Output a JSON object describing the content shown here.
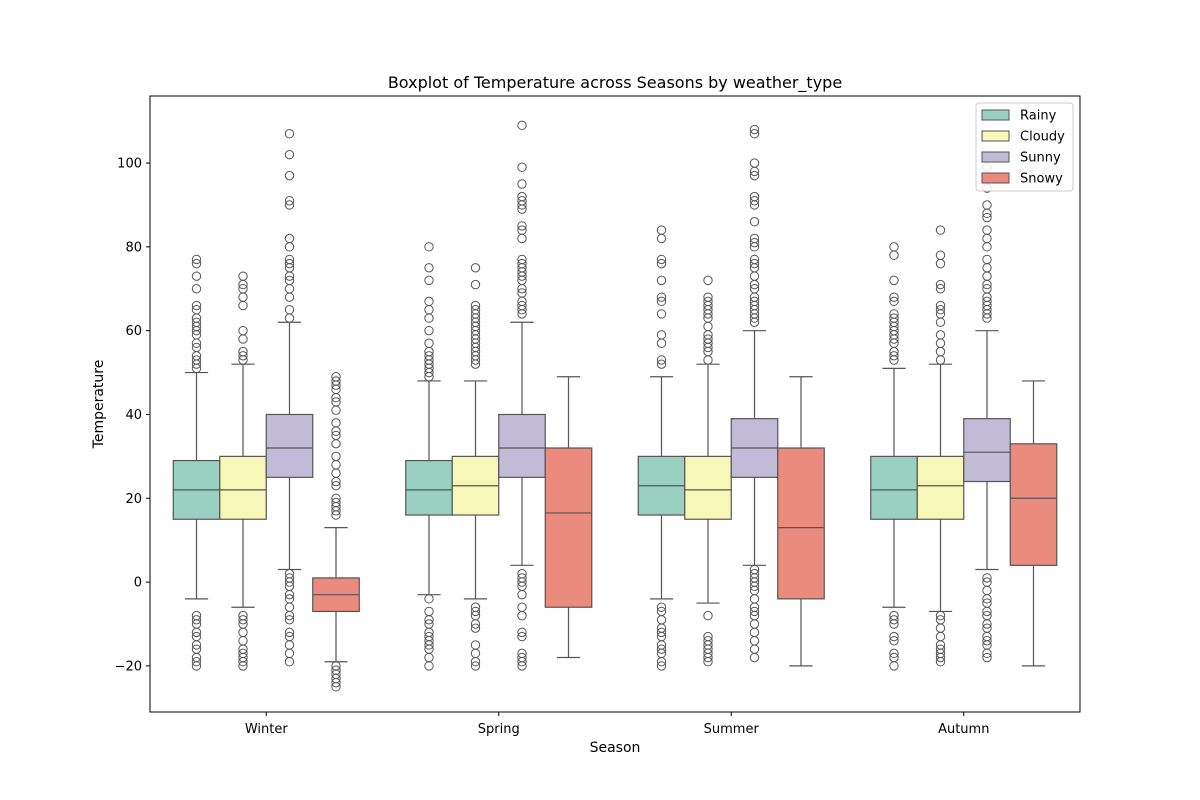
{
  "chart_data": {
    "type": "box",
    "title": "Boxplot of Temperature across Seasons by weather_type",
    "xlabel": "Season",
    "ylabel": "Temperature",
    "ylim": [
      -31,
      116
    ],
    "yticks": [
      -20,
      0,
      20,
      40,
      60,
      80,
      100
    ],
    "categories": [
      "Winter",
      "Spring",
      "Summer",
      "Autumn"
    ],
    "legend": {
      "location": "top-right"
    },
    "colors": {
      "Rainy": "#9ad0c2",
      "Cloudy": "#f7f7b8",
      "Sunny": "#c1bbd7",
      "Snowy": "#eb8b7e",
      "edge": "#555555"
    },
    "series": [
      {
        "name": "Rainy",
        "boxes": [
          {
            "whisker_low": -4,
            "q1": 15,
            "median": 22,
            "q3": 29,
            "whisker_high": 50,
            "outliers": [
              77,
              76,
              73,
              70,
              66,
              65,
              63,
              62,
              61,
              60,
              59,
              57,
              56,
              54,
              53,
              52,
              51,
              -8,
              -9,
              -10,
              -12,
              -13,
              -15,
              -16,
              -18,
              -19,
              -20
            ]
          },
          {
            "whisker_low": -3,
            "q1": 16,
            "median": 22,
            "q3": 29,
            "whisker_high": 48,
            "outliers": [
              80,
              75,
              72,
              67,
              65,
              63,
              60,
              57,
              55,
              54,
              53,
              52,
              51,
              50,
              49,
              -4,
              -7,
              -9,
              -10,
              -12,
              -13,
              -14,
              -15,
              -16,
              -18,
              -20
            ]
          },
          {
            "whisker_low": -4,
            "q1": 16,
            "median": 23,
            "q3": 30,
            "whisker_high": 49,
            "outliers": [
              84,
              82,
              77,
              76,
              72,
              68,
              67,
              64,
              59,
              57,
              53,
              52,
              -6,
              -7,
              -9,
              -11,
              -12,
              -13,
              -15,
              -16,
              -17,
              -19,
              -20
            ]
          },
          {
            "whisker_low": -6,
            "q1": 15,
            "median": 22,
            "q3": 30,
            "whisker_high": 51,
            "outliers": [
              80,
              78,
              72,
              68,
              67,
              64,
              63,
              62,
              61,
              60,
              59,
              58,
              57,
              55,
              54,
              53,
              -8,
              -9,
              -10,
              -13,
              -14,
              -17,
              -18,
              -20
            ]
          }
        ]
      },
      {
        "name": "Cloudy",
        "boxes": [
          {
            "whisker_low": -6,
            "q1": 15,
            "median": 22,
            "q3": 30,
            "whisker_high": 52,
            "outliers": [
              73,
              71,
              70,
              68,
              66,
              60,
              58,
              55,
              54,
              53,
              -8,
              -9,
              -10,
              -12,
              -14,
              -16,
              -17,
              -18,
              -19,
              -20
            ]
          },
          {
            "whisker_low": -4,
            "q1": 16,
            "median": 23,
            "q3": 30,
            "whisker_high": 48,
            "outliers": [
              75,
              71,
              66,
              65,
              64,
              63,
              62,
              61,
              60,
              59,
              58,
              57,
              56,
              55,
              54,
              53,
              52,
              -6,
              -7,
              -8,
              -10,
              -11,
              -15,
              -17,
              -19,
              -20
            ]
          },
          {
            "whisker_low": -5,
            "q1": 15,
            "median": 22,
            "q3": 30,
            "whisker_high": 52,
            "outliers": [
              72,
              68,
              67,
              66,
              65,
              64,
              63,
              61,
              59,
              58,
              57,
              56,
              55,
              53,
              -8,
              -13,
              -14,
              -15,
              -16,
              -17,
              -18,
              -19
            ]
          },
          {
            "whisker_low": -7,
            "q1": 15,
            "median": 23,
            "q3": 30,
            "whisker_high": 52,
            "outliers": [
              84,
              78,
              76,
              71,
              70,
              66,
              65,
              64,
              62,
              59,
              57,
              55,
              53,
              -8,
              -9,
              -11,
              -13,
              -15,
              -16,
              -17,
              -18,
              -19
            ]
          }
        ]
      },
      {
        "name": "Sunny",
        "boxes": [
          {
            "whisker_low": 3,
            "q1": 25,
            "median": 32,
            "q3": 40,
            "whisker_high": 62,
            "outliers": [
              107,
              102,
              97,
              91,
              90,
              82,
              80,
              77,
              76,
              75,
              73,
              72,
              70,
              68,
              65,
              63,
              2,
              1,
              0,
              -1,
              -3,
              -4,
              -6,
              -8,
              -9,
              -12,
              -13,
              -15,
              -17,
              -19
            ]
          },
          {
            "whisker_low": 4,
            "q1": 25,
            "median": 32,
            "q3": 40,
            "whisker_high": 62,
            "outliers": [
              109,
              99,
              95,
              92,
              91,
              90,
              89,
              85,
              84,
              82,
              77,
              76,
              75,
              74,
              73,
              72,
              70,
              69,
              67,
              66,
              65,
              64,
              2,
              1,
              0,
              -1,
              -3,
              -6,
              -8,
              -12,
              -13,
              -17,
              -18,
              -19,
              -20
            ]
          },
          {
            "whisker_low": 4,
            "q1": 25,
            "median": 32,
            "q3": 39,
            "whisker_high": 60,
            "outliers": [
              108,
              107,
              100,
              98,
              97,
              92,
              91,
              90,
              86,
              82,
              81,
              80,
              77,
              76,
              75,
              73,
              71,
              70,
              68,
              67,
              66,
              65,
              64,
              63,
              62,
              3,
              2,
              1,
              0,
              -1,
              -2,
              -4,
              -6,
              -7,
              -8,
              -10,
              -12,
              -14,
              -16,
              -18
            ]
          },
          {
            "whisker_low": 3,
            "q1": 24,
            "median": 31,
            "q3": 39,
            "whisker_high": 60,
            "outliers": [
              99,
              94,
              90,
              88,
              87,
              84,
              82,
              80,
              77,
              75,
              73,
              71,
              70,
              68,
              67,
              66,
              65,
              64,
              63,
              1,
              0,
              -2,
              -4,
              -5,
              -7,
              -8,
              -10,
              -11,
              -13,
              -14,
              -15,
              -17,
              -18
            ]
          }
        ]
      },
      {
        "name": "Snowy",
        "boxes": [
          {
            "whisker_low": -19,
            "q1": -7,
            "median": -3,
            "q3": 1,
            "whisker_high": 13,
            "outliers": [
              49,
              48,
              47,
              46,
              44,
              43,
              41,
              38,
              36,
              35,
              33,
              30,
              28,
              26,
              24,
              23,
              20,
              19,
              18,
              17,
              16,
              -20,
              -21,
              -22,
              -23,
              -24,
              -25
            ]
          },
          {
            "whisker_low": -18,
            "q1": -6,
            "median": 16.5,
            "q3": 32,
            "whisker_high": 49,
            "outliers": []
          },
          {
            "whisker_low": -20,
            "q1": -4,
            "median": 13,
            "q3": 32,
            "whisker_high": 49,
            "outliers": []
          },
          {
            "whisker_low": -20,
            "q1": 4,
            "median": 20,
            "q3": 33,
            "whisker_high": 48,
            "outliers": []
          }
        ]
      }
    ]
  }
}
